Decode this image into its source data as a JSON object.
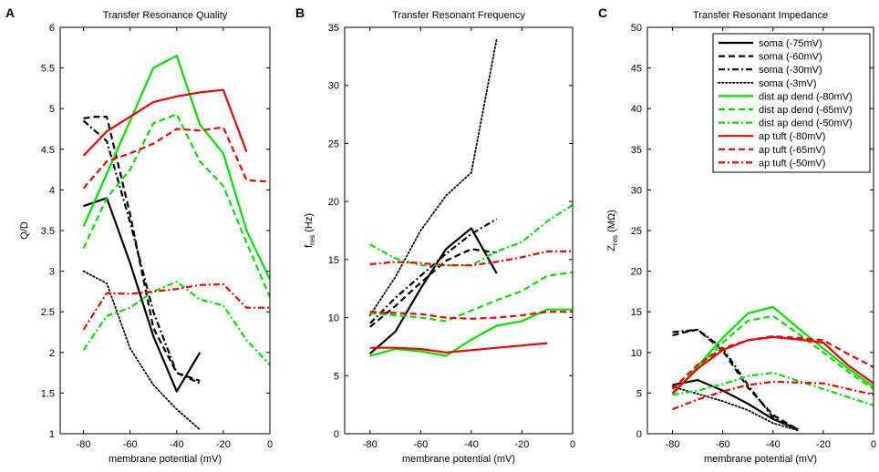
{
  "figure": {
    "panels": [
      "A",
      "B",
      "C"
    ]
  },
  "chart_data": [
    {
      "type": "line",
      "panel_label": "A",
      "title": "Transfer Resonance Quality",
      "xlabel": "membrane potential (mV)",
      "ylabel": "Q/D",
      "xlim": [
        -90,
        0
      ],
      "ylim": [
        1,
        6
      ],
      "xticks": [
        -80,
        -60,
        -40,
        -20,
        0
      ],
      "yticks": [
        1,
        1.5,
        2,
        2.5,
        3,
        3.5,
        4,
        4.5,
        5,
        5.5,
        6
      ],
      "ytick_labels": [
        "1",
        "1.5",
        "2",
        "2.5",
        "3",
        "3.5",
        "4",
        "4.5",
        "5",
        "5.5",
        "6"
      ],
      "series": [
        {
          "name": "soma (-75mV)",
          "color": "#000000",
          "dash": "solid",
          "x": [
            -80,
            -70,
            -60,
            -50,
            -40,
            -30
          ],
          "y": [
            3.8,
            3.9,
            3.1,
            2.2,
            1.52,
            2.0
          ]
        },
        {
          "name": "soma (-60mV)",
          "color": "#000000",
          "dash": "dashed",
          "x": [
            -80,
            -75,
            -70,
            -60,
            -50,
            -40,
            -30
          ],
          "y": [
            4.88,
            4.9,
            4.9,
            3.7,
            2.3,
            1.75,
            1.65
          ]
        },
        {
          "name": "soma (-30mV)",
          "color": "#000000",
          "dash": "dashdot",
          "x": [
            -80,
            -70,
            -60,
            -50,
            -40,
            -30
          ],
          "y": [
            4.85,
            4.6,
            3.6,
            2.5,
            1.75,
            1.62
          ]
        },
        {
          "name": "soma (-3mV)",
          "color": "#000000",
          "dash": "dotted",
          "x": [
            -80,
            -70,
            -60,
            -50,
            -40,
            -30
          ],
          "y": [
            3.0,
            2.85,
            2.05,
            1.6,
            1.3,
            1.05
          ]
        },
        {
          "name": "dist ap dend (-80mV)",
          "color": "#00e000",
          "dash": "solid",
          "x": [
            -80,
            -70,
            -60,
            -50,
            -40,
            -30,
            -20,
            -10,
            0
          ],
          "y": [
            3.55,
            4.2,
            4.85,
            5.5,
            5.65,
            4.8,
            4.45,
            3.5,
            2.9
          ]
        },
        {
          "name": "dist ap dend (-65mV)",
          "color": "#00e000",
          "dash": "dashed",
          "x": [
            -80,
            -70,
            -60,
            -50,
            -40,
            -30,
            -20,
            -10,
            0
          ],
          "y": [
            3.28,
            3.9,
            4.25,
            4.82,
            4.93,
            4.35,
            4.05,
            3.35,
            2.68
          ]
        },
        {
          "name": "dist ap dend (-50mV)",
          "color": "#00e000",
          "dash": "dashdot",
          "x": [
            -80,
            -70,
            -60,
            -50,
            -40,
            -30,
            -20,
            -10,
            0
          ],
          "y": [
            2.03,
            2.45,
            2.55,
            2.75,
            2.87,
            2.65,
            2.58,
            2.15,
            1.85
          ]
        },
        {
          "name": "ap tuft (-80mV)",
          "color": "#ee0000",
          "dash": "solid",
          "x": [
            -80,
            -70,
            -60,
            -50,
            -40,
            -30,
            -20,
            -10
          ],
          "y": [
            4.42,
            4.72,
            4.9,
            5.08,
            5.15,
            5.2,
            5.23,
            4.47
          ]
        },
        {
          "name": "ap tuft (-65mV)",
          "color": "#ee0000",
          "dash": "dashed",
          "x": [
            -80,
            -70,
            -60,
            -50,
            -40,
            -30,
            -20,
            -10,
            0
          ],
          "y": [
            4.02,
            4.35,
            4.45,
            4.57,
            4.75,
            4.73,
            4.77,
            4.12,
            4.1
          ]
        },
        {
          "name": "ap tuft (-50mV)",
          "color": "#ee0000",
          "dash": "dashdot",
          "x": [
            -80,
            -70,
            -60,
            -50,
            -40,
            -30,
            -20,
            -10,
            0
          ],
          "y": [
            2.28,
            2.73,
            2.72,
            2.75,
            2.78,
            2.83,
            2.84,
            2.55,
            2.55
          ]
        }
      ]
    },
    {
      "type": "line",
      "panel_label": "B",
      "title": "Transfer Resonant Frequency",
      "xlabel": "membrane potential (mV)",
      "ylabel": "f",
      "ylabel_sub": "res",
      "ylabel_unit": " (Hz)",
      "xlim": [
        -90,
        0
      ],
      "ylim": [
        0,
        35
      ],
      "xticks": [
        -80,
        -60,
        -40,
        -20,
        0
      ],
      "yticks": [
        0,
        5,
        10,
        15,
        20,
        25,
        30,
        35
      ],
      "ytick_labels": [
        "0",
        "5",
        "10",
        "15",
        "20",
        "25",
        "30",
        "35"
      ],
      "series": [
        {
          "name": "soma (-75mV)",
          "color": "#000000",
          "dash": "solid",
          "x": [
            -80,
            -70,
            -60,
            -50,
            -40,
            -30
          ],
          "y": [
            6.9,
            8.8,
            12.5,
            15.9,
            17.7,
            13.8
          ]
        },
        {
          "name": "soma (-60mV)",
          "color": "#000000",
          "dash": "dashed",
          "x": [
            -80,
            -70,
            -60,
            -50,
            -40,
            -30
          ],
          "y": [
            9.2,
            11.0,
            13.0,
            14.9,
            15.9,
            15.6
          ]
        },
        {
          "name": "soma (-30mV)",
          "color": "#000000",
          "dash": "dashdot",
          "x": [
            -80,
            -70,
            -60,
            -50,
            -40,
            -30
          ],
          "y": [
            9.5,
            11.7,
            13.6,
            15.5,
            17.2,
            18.5
          ]
        },
        {
          "name": "soma (-3mV)",
          "color": "#000000",
          "dash": "dotted",
          "x": [
            -80,
            -70,
            -60,
            -50,
            -40,
            -30
          ],
          "y": [
            10.2,
            13.5,
            17.5,
            20.5,
            22.5,
            34.0
          ]
        },
        {
          "name": "dist ap dend (-80mV)",
          "color": "#00e000",
          "dash": "solid",
          "x": [
            -80,
            -70,
            -60,
            -50,
            -40,
            -30,
            -20,
            -10,
            0
          ],
          "y": [
            6.7,
            7.3,
            7.1,
            6.7,
            8.1,
            9.3,
            9.7,
            10.7,
            10.7
          ]
        },
        {
          "name": "dist ap dend (-65mV)",
          "color": "#00e000",
          "dash": "dashed",
          "x": [
            -80,
            -70,
            -60,
            -50,
            -40,
            -30,
            -20,
            -10,
            0
          ],
          "y": [
            10.4,
            10.2,
            10.0,
            9.7,
            10.6,
            11.5,
            12.3,
            13.6,
            13.9
          ]
        },
        {
          "name": "dist ap dend (-50mV)",
          "color": "#00e000",
          "dash": "dashdot",
          "x": [
            -80,
            -70,
            -60,
            -50,
            -40,
            -30,
            -20,
            -10,
            0
          ],
          "y": [
            16.3,
            15.1,
            14.5,
            14.5,
            14.5,
            15.7,
            16.5,
            18.3,
            19.7
          ]
        },
        {
          "name": "ap tuft (-80mV)",
          "color": "#ee0000",
          "dash": "solid",
          "x": [
            -80,
            -70,
            -60,
            -50,
            -40,
            -30,
            -20,
            -10
          ],
          "y": [
            7.4,
            7.4,
            7.3,
            7.0,
            7.2,
            7.4,
            7.6,
            7.8
          ]
        },
        {
          "name": "ap tuft (-65mV)",
          "color": "#ee0000",
          "dash": "dashed",
          "x": [
            -80,
            -70,
            -60,
            -50,
            -40,
            -30,
            -20,
            -10,
            0
          ],
          "y": [
            10.5,
            10.4,
            10.3,
            10.0,
            9.9,
            10.0,
            10.2,
            10.5,
            10.5
          ]
        },
        {
          "name": "ap tuft (-50mV)",
          "color": "#ee0000",
          "dash": "dashdot",
          "x": [
            -80,
            -70,
            -60,
            -50,
            -40,
            -30,
            -20,
            -10,
            0
          ],
          "y": [
            14.6,
            14.8,
            14.7,
            14.5,
            14.5,
            14.8,
            15.2,
            15.7,
            15.7
          ]
        }
      ]
    },
    {
      "type": "line",
      "panel_label": "C",
      "title": "Transfer Resonant Impedance",
      "xlabel": "membrane potential (mV)",
      "ylabel": "Z",
      "ylabel_sub": "res",
      "ylabel_unit": " (MΩ)",
      "xlim": [
        -90,
        0
      ],
      "ylim": [
        0,
        50
      ],
      "xticks": [
        -80,
        -60,
        -40,
        -20,
        0
      ],
      "yticks": [
        0,
        5,
        10,
        15,
        20,
        25,
        30,
        35,
        40,
        45,
        50
      ],
      "ytick_labels": [
        "0",
        "5",
        "10",
        "15",
        "20",
        "25",
        "30",
        "35",
        "40",
        "45",
        "50"
      ],
      "legend_position": "top-right",
      "series": [
        {
          "name": "soma (-75mV)",
          "color": "#000000",
          "dash": "solid",
          "x": [
            -80,
            -70,
            -60,
            -50,
            -40,
            -30
          ],
          "y": [
            6.0,
            6.6,
            5.3,
            3.7,
            1.8,
            0.5
          ]
        },
        {
          "name": "soma (-60mV)",
          "color": "#000000",
          "dash": "dashed",
          "x": [
            -80,
            -75,
            -70,
            -60,
            -50,
            -40,
            -30
          ],
          "y": [
            12.1,
            12.5,
            12.8,
            10.2,
            5.7,
            2.3,
            0.5
          ]
        },
        {
          "name": "soma (-30mV)",
          "color": "#000000",
          "dash": "dashdot",
          "x": [
            -80,
            -70,
            -60,
            -50,
            -40,
            -30
          ],
          "y": [
            12.5,
            12.8,
            10.5,
            6.0,
            2.0,
            0.5
          ]
        },
        {
          "name": "soma (-3mV)",
          "color": "#000000",
          "dash": "dotted",
          "x": [
            -80,
            -70,
            -60,
            -50,
            -40,
            -30
          ],
          "y": [
            5.8,
            4.9,
            4.0,
            2.9,
            1.3,
            0.4
          ]
        },
        {
          "name": "dist ap dend (-80mV)",
          "color": "#00e000",
          "dash": "solid",
          "x": [
            -80,
            -70,
            -60,
            -50,
            -40,
            -30,
            -20,
            -10,
            0
          ],
          "y": [
            4.8,
            8.3,
            11.8,
            14.8,
            15.6,
            13.0,
            10.5,
            8.0,
            5.8
          ]
        },
        {
          "name": "dist ap dend (-65mV)",
          "color": "#00e000",
          "dash": "dashed",
          "x": [
            -80,
            -70,
            -60,
            -50,
            -40,
            -30,
            -20,
            -10,
            0
          ],
          "y": [
            5.0,
            8.0,
            11.2,
            13.9,
            14.5,
            12.3,
            10.0,
            7.6,
            5.5
          ]
        },
        {
          "name": "dist ap dend (-50mV)",
          "color": "#00e000",
          "dash": "dashdot",
          "x": [
            -80,
            -70,
            -60,
            -50,
            -40,
            -30,
            -20,
            -10,
            0
          ],
          "y": [
            4.8,
            5.3,
            6.1,
            7.1,
            7.5,
            6.5,
            5.5,
            4.5,
            3.5
          ]
        },
        {
          "name": "ap tuft (-80mV)",
          "color": "#ee0000",
          "dash": "solid",
          "x": [
            -80,
            -70,
            -60,
            -50,
            -40,
            -30,
            -20,
            -10,
            0
          ],
          "y": [
            5.0,
            8.0,
            10.3,
            11.5,
            11.9,
            11.6,
            11.2,
            8.4,
            6.2
          ]
        },
        {
          "name": "ap tuft (-65mV)",
          "color": "#ee0000",
          "dash": "dashed",
          "x": [
            -80,
            -70,
            -60,
            -50,
            -40,
            -30,
            -20,
            -10,
            0
          ],
          "y": [
            5.5,
            8.5,
            10.5,
            11.5,
            12.0,
            11.8,
            11.5,
            9.8,
            8.2
          ]
        },
        {
          "name": "ap tuft (-50mV)",
          "color": "#ee0000",
          "dash": "dashdot",
          "x": [
            -80,
            -70,
            -60,
            -50,
            -40,
            -30,
            -20,
            -10,
            0
          ],
          "y": [
            3.0,
            4.2,
            5.2,
            6.0,
            6.4,
            6.3,
            6.2,
            5.5,
            4.8
          ]
        }
      ]
    }
  ]
}
